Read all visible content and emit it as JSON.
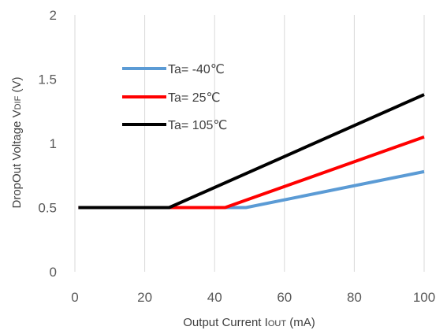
{
  "chart_data": {
    "type": "line",
    "title": "",
    "xlabel": "Output Current I",
    "xlabel_sub": "OUT",
    "xlabel_unit": " (mA)",
    "ylabel": "DropOut Voltage V",
    "ylabel_sub": "DIF",
    "ylabel_unit": " (V)",
    "xlim": [
      0,
      100
    ],
    "ylim": [
      0,
      2
    ],
    "xticks": [
      0,
      20,
      40,
      60,
      80,
      100
    ],
    "yticks": [
      0,
      0.5,
      1,
      1.5,
      2
    ],
    "xtick_labels": [
      "0",
      "20",
      "40",
      "60",
      "80",
      "100"
    ],
    "ytick_labels": [
      "0",
      "0.5",
      "1",
      "1.5",
      "2"
    ],
    "grid": "vertical",
    "legend_position": "top-left",
    "series": [
      {
        "name": "Ta= -40℃",
        "color": "#5b9bd5",
        "points": [
          [
            1,
            0.5
          ],
          [
            49,
            0.5
          ],
          [
            100,
            0.78
          ]
        ]
      },
      {
        "name": "Ta= 25℃",
        "color": "#ff0000",
        "points": [
          [
            1,
            0.5
          ],
          [
            43,
            0.5
          ],
          [
            100,
            1.05
          ]
        ]
      },
      {
        "name": "Ta= 105℃",
        "color": "#000000",
        "points": [
          [
            1,
            0.5
          ],
          [
            27,
            0.5
          ],
          [
            100,
            1.38
          ]
        ]
      }
    ]
  }
}
